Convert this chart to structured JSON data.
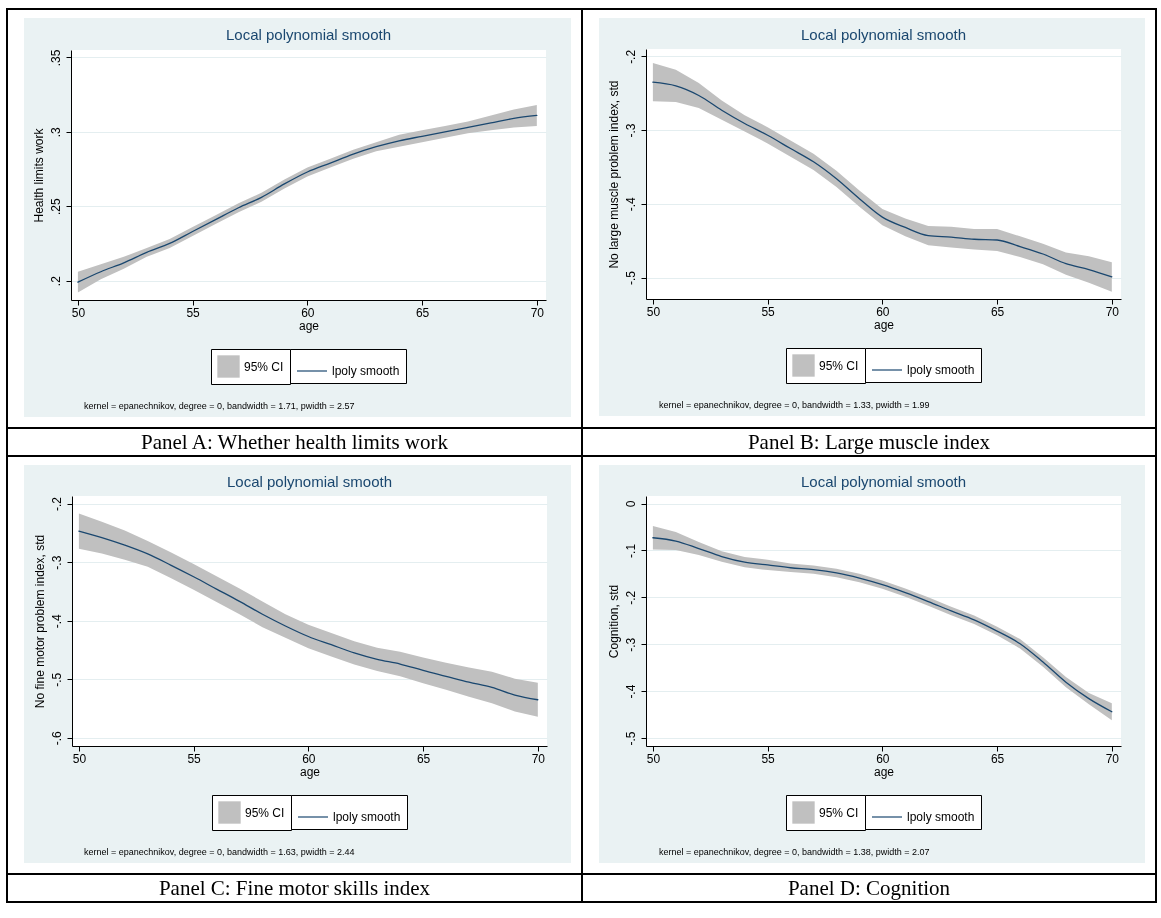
{
  "chart_data": [
    {
      "type": "line",
      "title": "Local polynomial smooth",
      "xlabel": "age",
      "ylabel": "Health limits work",
      "x": [
        50,
        51,
        52,
        53,
        54,
        55,
        56,
        57,
        58,
        59,
        60,
        61,
        62,
        63,
        64,
        65,
        66,
        67,
        68,
        69,
        70
      ],
      "series": [
        {
          "name": "lpoly smooth",
          "color": "#1a476f",
          "values": [
            0.199,
            0.206,
            0.212,
            0.219,
            0.225,
            0.233,
            0.241,
            0.249,
            0.256,
            0.265,
            0.273,
            0.279,
            0.285,
            0.29,
            0.294,
            0.297,
            0.3,
            0.303,
            0.306,
            0.309,
            0.311
          ],
          "lower": [
            0.192,
            0.201,
            0.208,
            0.216,
            0.222,
            0.23,
            0.238,
            0.246,
            0.253,
            0.262,
            0.27,
            0.276,
            0.282,
            0.287,
            0.29,
            0.293,
            0.296,
            0.299,
            0.301,
            0.303,
            0.304
          ],
          "upper": [
            0.206,
            0.211,
            0.216,
            0.222,
            0.228,
            0.236,
            0.244,
            0.252,
            0.259,
            0.268,
            0.276,
            0.282,
            0.288,
            0.293,
            0.298,
            0.301,
            0.304,
            0.307,
            0.311,
            0.315,
            0.318
          ]
        }
      ],
      "xlim": [
        49.7,
        70.4
      ],
      "xticks": [
        50,
        55,
        60,
        65,
        70
      ],
      "ylim": [
        0.187,
        0.355
      ],
      "yticks": [
        {
          "value": 0.2,
          "label": ".2"
        },
        {
          "value": 0.25,
          "label": ".25"
        },
        {
          "value": 0.3,
          "label": ".3"
        },
        {
          "value": 0.35,
          "label": ".35"
        }
      ],
      "grid": "y",
      "legend": "bottom",
      "line_style": "solid",
      "annotations": [
        "95% CI",
        "kernel = epanechnikov, degree = 0, bandwidth = 1.71, pwidth = 2.57",
        "Panel A: Whether health limits work"
      ]
    },
    {
      "type": "line",
      "title": "Local polynomial smooth",
      "xlabel": "age",
      "ylabel": "No large muscle problem index, std",
      "x": [
        50,
        51,
        52,
        53,
        54,
        55,
        56,
        57,
        58,
        59,
        60,
        61,
        62,
        63,
        64,
        65,
        66,
        67,
        68,
        69,
        70
      ],
      "series": [
        {
          "name": "lpoly smooth",
          "color": "#1a476f",
          "values": [
            -0.235,
            -0.24,
            -0.253,
            -0.273,
            -0.291,
            -0.307,
            -0.325,
            -0.343,
            -0.366,
            -0.393,
            -0.418,
            -0.432,
            -0.443,
            -0.445,
            -0.448,
            -0.449,
            -0.458,
            -0.468,
            -0.481,
            -0.489,
            -0.499
          ],
          "lower": [
            -0.261,
            -0.262,
            -0.27,
            -0.286,
            -0.302,
            -0.318,
            -0.336,
            -0.354,
            -0.377,
            -0.404,
            -0.429,
            -0.444,
            -0.456,
            -0.459,
            -0.462,
            -0.464,
            -0.472,
            -0.482,
            -0.496,
            -0.507,
            -0.519
          ],
          "upper": [
            -0.209,
            -0.218,
            -0.236,
            -0.26,
            -0.28,
            -0.296,
            -0.314,
            -0.332,
            -0.355,
            -0.382,
            -0.407,
            -0.42,
            -0.43,
            -0.431,
            -0.434,
            -0.434,
            -0.444,
            -0.454,
            -0.466,
            -0.471,
            -0.479
          ]
        }
      ],
      "xlim": [
        49.7,
        70.4
      ],
      "xticks": [
        50,
        55,
        60,
        65,
        70
      ],
      "ylim": [
        -0.529,
        -0.19
      ],
      "yticks": [
        {
          "value": -0.5,
          "label": "-.5"
        },
        {
          "value": -0.4,
          "label": "-.4"
        },
        {
          "value": -0.3,
          "label": "-.3"
        },
        {
          "value": -0.2,
          "label": "-.2"
        }
      ],
      "grid": "y",
      "legend": "bottom",
      "line_style": "solid",
      "annotations": [
        "95% CI",
        "kernel = epanechnikov, degree = 0, bandwidth = 1.33, pwidth = 1.99",
        "Panel B: Large muscle index"
      ]
    },
    {
      "type": "line",
      "title": "Local polynomial smooth",
      "xlabel": "age",
      "ylabel": "No fine motor problem index, std",
      "x": [
        50,
        51,
        52,
        53,
        54,
        55,
        56,
        57,
        58,
        59,
        60,
        61,
        62,
        63,
        64,
        65,
        66,
        67,
        68,
        69,
        70
      ],
      "series": [
        {
          "name": "lpoly smooth",
          "color": "#1a476f",
          "values": [
            -0.247,
            -0.258,
            -0.271,
            -0.286,
            -0.305,
            -0.325,
            -0.346,
            -0.367,
            -0.389,
            -0.409,
            -0.427,
            -0.441,
            -0.455,
            -0.466,
            -0.474,
            -0.485,
            -0.495,
            -0.505,
            -0.514,
            -0.527,
            -0.535
          ],
          "lower": [
            -0.277,
            -0.285,
            -0.296,
            -0.308,
            -0.327,
            -0.347,
            -0.368,
            -0.389,
            -0.411,
            -0.429,
            -0.447,
            -0.461,
            -0.475,
            -0.486,
            -0.495,
            -0.507,
            -0.518,
            -0.53,
            -0.541,
            -0.555,
            -0.564
          ],
          "upper": [
            -0.217,
            -0.231,
            -0.246,
            -0.264,
            -0.283,
            -0.303,
            -0.324,
            -0.345,
            -0.367,
            -0.389,
            -0.407,
            -0.421,
            -0.435,
            -0.446,
            -0.453,
            -0.463,
            -0.472,
            -0.48,
            -0.487,
            -0.499,
            -0.506
          ]
        }
      ],
      "xlim": [
        49.7,
        70.4
      ],
      "xticks": [
        50,
        55,
        60,
        65,
        70
      ],
      "ylim": [
        -0.614,
        -0.187
      ],
      "yticks": [
        {
          "value": -0.6,
          "label": "-.6"
        },
        {
          "value": -0.5,
          "label": "-.5"
        },
        {
          "value": -0.4,
          "label": "-.4"
        },
        {
          "value": -0.3,
          "label": "-.3"
        },
        {
          "value": -0.2,
          "label": "-.2"
        }
      ],
      "grid": "y",
      "legend": "bottom",
      "line_style": "solid",
      "annotations": [
        "95% CI",
        "kernel = epanechnikov, degree = 0, bandwidth = 1.63, pwidth = 2.44",
        "Panel C: Fine motor skills index"
      ]
    },
    {
      "type": "line",
      "title": "Local polynomial smooth",
      "xlabel": "age",
      "ylabel": "Cognition, std",
      "x": [
        50,
        51,
        52,
        53,
        54,
        55,
        56,
        57,
        58,
        59,
        60,
        61,
        62,
        63,
        64,
        65,
        66,
        67,
        68,
        69,
        70
      ],
      "series": [
        {
          "name": "lpoly smooth",
          "color": "#1a476f",
          "values": [
            -0.073,
            -0.08,
            -0.096,
            -0.113,
            -0.125,
            -0.131,
            -0.137,
            -0.141,
            -0.148,
            -0.159,
            -0.173,
            -0.19,
            -0.209,
            -0.229,
            -0.248,
            -0.272,
            -0.299,
            -0.338,
            -0.381,
            -0.416,
            -0.444
          ],
          "lower": [
            -0.098,
            -0.099,
            -0.11,
            -0.124,
            -0.136,
            -0.142,
            -0.146,
            -0.15,
            -0.157,
            -0.168,
            -0.182,
            -0.199,
            -0.218,
            -0.238,
            -0.257,
            -0.281,
            -0.309,
            -0.348,
            -0.392,
            -0.428,
            -0.462
          ],
          "upper": [
            -0.048,
            -0.061,
            -0.082,
            -0.102,
            -0.114,
            -0.12,
            -0.128,
            -0.132,
            -0.139,
            -0.15,
            -0.164,
            -0.181,
            -0.2,
            -0.22,
            -0.239,
            -0.263,
            -0.289,
            -0.328,
            -0.37,
            -0.404,
            -0.426
          ]
        }
      ],
      "xlim": [
        49.7,
        70.4
      ],
      "xticks": [
        50,
        55,
        60,
        65,
        70
      ],
      "ylim": [
        -0.517,
        0.016
      ],
      "yticks": [
        {
          "value": -0.5,
          "label": "-.5"
        },
        {
          "value": -0.4,
          "label": "-.4"
        },
        {
          "value": -0.3,
          "label": "-.3"
        },
        {
          "value": -0.2,
          "label": "-.2"
        },
        {
          "value": -0.1,
          "label": "-.1"
        },
        {
          "value": 0,
          "label": "0"
        }
      ],
      "grid": "y",
      "legend": "bottom",
      "line_style": "solid",
      "annotations": [
        "95% CI",
        "kernel = epanechnikov, degree = 0, bandwidth = 1.38, pwidth = 2.07",
        "Panel D: Cognition"
      ]
    }
  ]
}
